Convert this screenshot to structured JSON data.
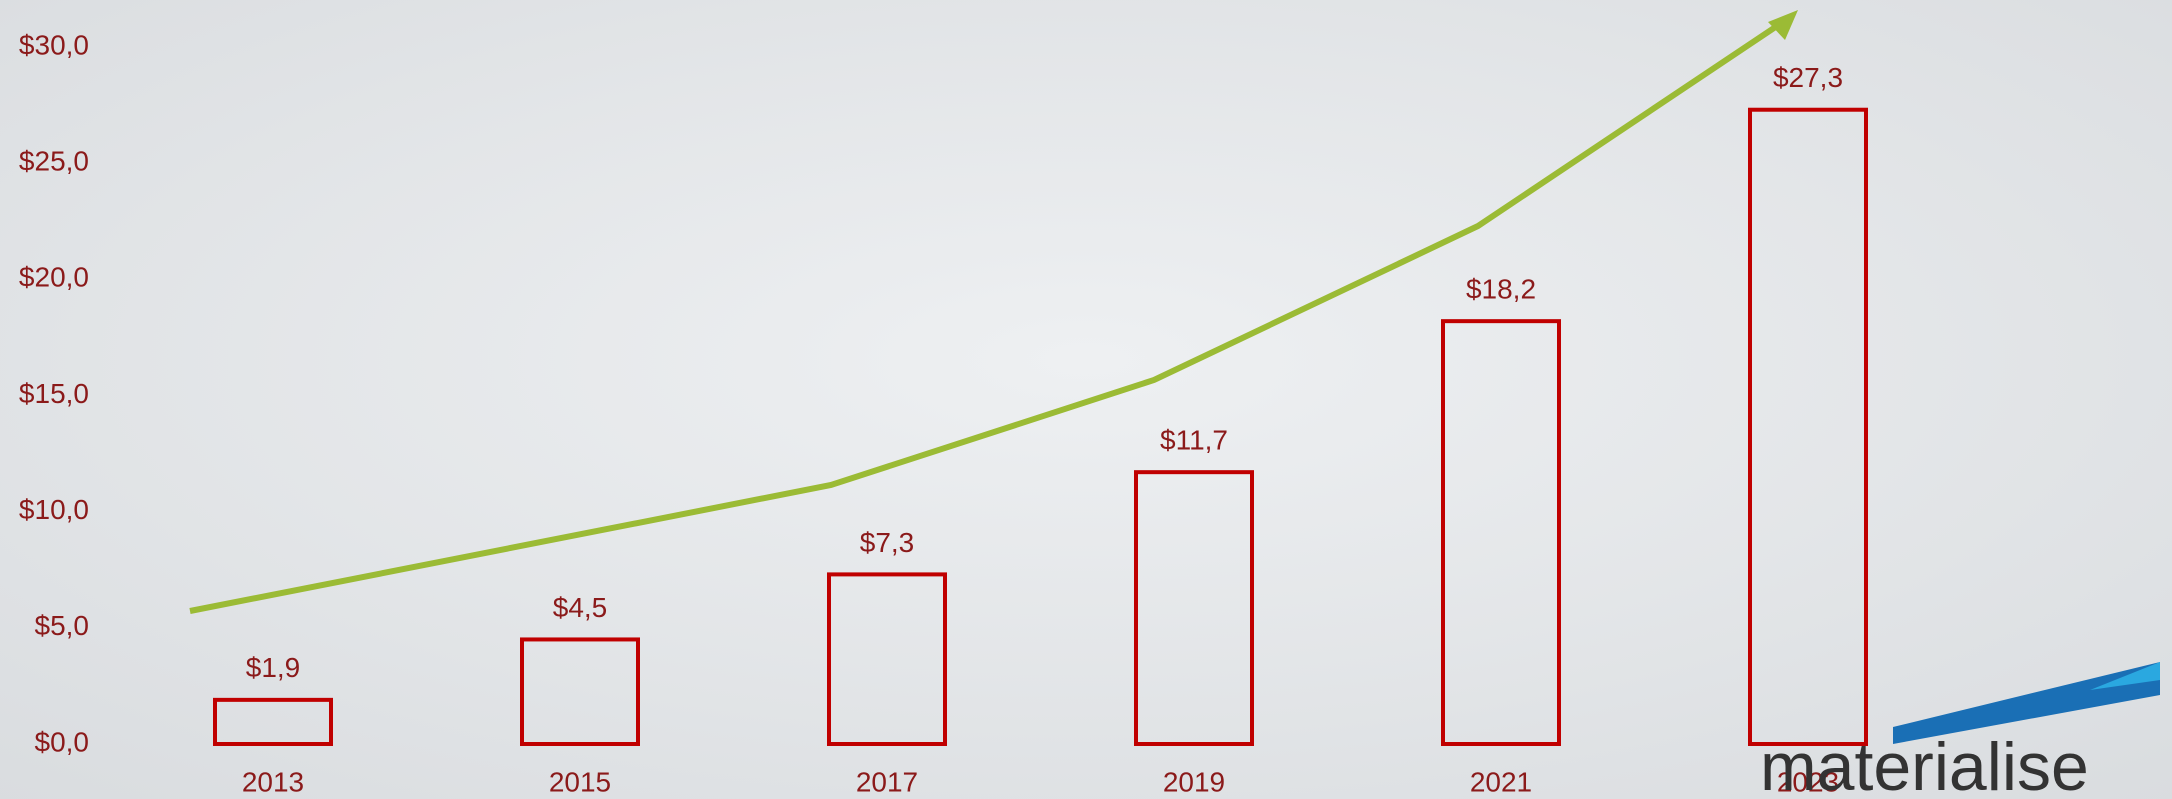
{
  "chart_data": {
    "type": "bar",
    "categories": [
      "2013",
      "2015",
      "2017",
      "2019",
      "2021",
      "2023"
    ],
    "values": [
      1.9,
      4.5,
      7.3,
      11.7,
      18.2,
      27.3
    ],
    "value_labels": [
      "$1,9",
      "$4,5",
      "$7,3",
      "$11,7",
      "$18,2",
      "$27,3"
    ],
    "color": "#c00000",
    "ylim": [
      0,
      30
    ],
    "yticks": [
      {
        "value": 0,
        "label": "$0,0"
      },
      {
        "value": 5,
        "label": "$5,0"
      },
      {
        "value": 10,
        "label": "$10,0"
      },
      {
        "value": 15,
        "label": "$15,0"
      },
      {
        "value": 20,
        "label": "$20,0"
      },
      {
        "value": 25,
        "label": "$25,0"
      },
      {
        "value": 30,
        "label": "$30,0"
      }
    ],
    "grid": false
  },
  "logo": "materialise"
}
